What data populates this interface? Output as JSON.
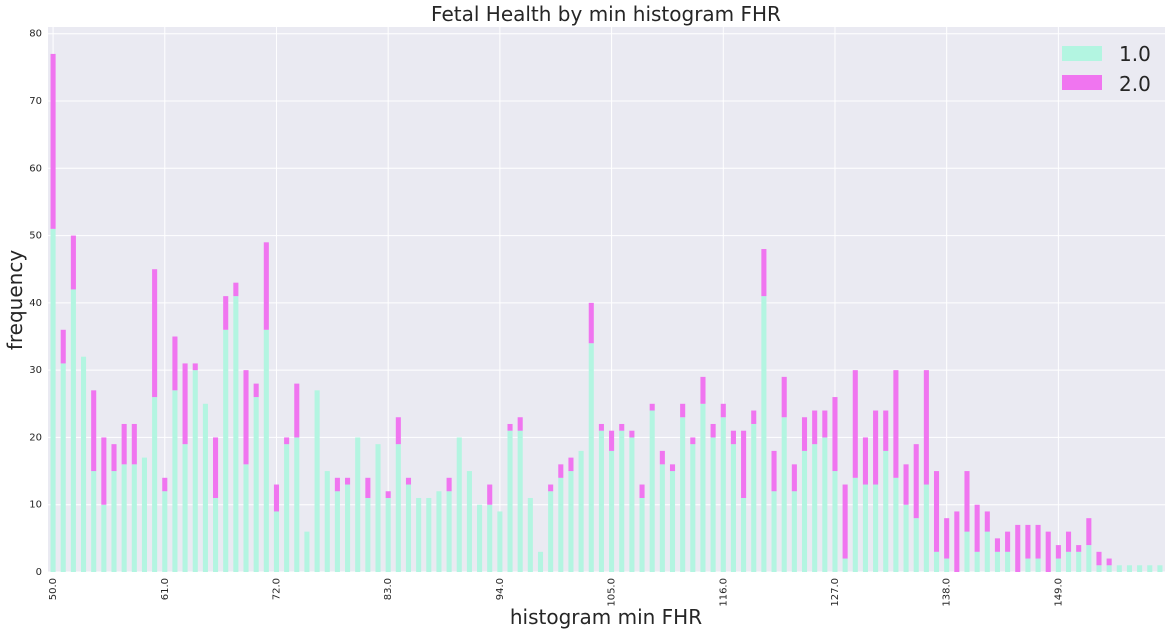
{
  "chart_data": {
    "type": "bar",
    "stacked": true,
    "title": "Fetal Health by min histogram FHR",
    "xlabel": "histogram min FHR",
    "ylabel": "frequency",
    "ylim": [
      0,
      81
    ],
    "yticks": [
      0,
      10,
      20,
      30,
      40,
      50,
      60,
      70,
      80
    ],
    "x_start": 50,
    "x_end": 159,
    "xtick_labels": [
      "50.0",
      "61.0",
      "72.0",
      "83.0",
      "94.0",
      "105.0",
      "116.0",
      "127.0",
      "138.0",
      "149.0"
    ],
    "legend": {
      "position": "top-right"
    },
    "colors": {
      "1.0": "#b3f5e1",
      "2.0": "#f075f0",
      "background": "#eaeaf2",
      "grid": "#ffffff"
    },
    "series": [
      {
        "name": "1.0",
        "values": [
          51,
          31,
          42,
          32,
          15,
          10,
          15,
          16,
          16,
          17,
          26,
          12,
          27,
          19,
          30,
          25,
          11,
          36,
          41,
          16,
          26,
          36,
          9,
          19,
          20,
          6,
          27,
          15,
          12,
          13,
          20,
          11,
          19,
          11,
          19,
          13,
          11,
          11,
          12,
          12,
          20,
          15,
          10,
          10,
          9,
          21,
          21,
          11,
          3,
          12,
          14,
          15,
          18,
          34,
          21,
          18,
          21,
          20,
          11,
          24,
          16,
          15,
          23,
          19,
          25,
          20,
          23,
          19,
          11,
          22,
          41,
          12,
          23,
          12,
          18,
          19,
          20,
          15,
          2,
          14,
          13,
          13,
          18,
          14,
          10,
          8,
          13,
          3,
          2,
          0,
          6,
          3,
          6,
          3,
          3,
          0,
          2,
          2,
          0,
          2,
          3,
          3,
          4,
          1,
          1,
          1,
          1,
          1,
          1,
          1
        ]
      },
      {
        "name": "2.0",
        "values": [
          26,
          5,
          8,
          0,
          12,
          10,
          4,
          6,
          6,
          0,
          19,
          2,
          8,
          12,
          1,
          0,
          9,
          5,
          2,
          14,
          2,
          13,
          4,
          1,
          8,
          0,
          0,
          0,
          2,
          1,
          0,
          3,
          0,
          1,
          4,
          1,
          0,
          0,
          0,
          2,
          0,
          0,
          0,
          3,
          0,
          1,
          2,
          0,
          0,
          1,
          2,
          2,
          0,
          6,
          1,
          3,
          1,
          1,
          2,
          1,
          2,
          1,
          2,
          1,
          4,
          2,
          2,
          2,
          10,
          2,
          7,
          6,
          6,
          4,
          5,
          5,
          4,
          11,
          11,
          16,
          7,
          11,
          6,
          16,
          6,
          11,
          17,
          12,
          6,
          9,
          9,
          7,
          3,
          2,
          3,
          7,
          5,
          5,
          6,
          2,
          3,
          1,
          4,
          2,
          1,
          0,
          0,
          0,
          0,
          0
        ]
      }
    ]
  }
}
